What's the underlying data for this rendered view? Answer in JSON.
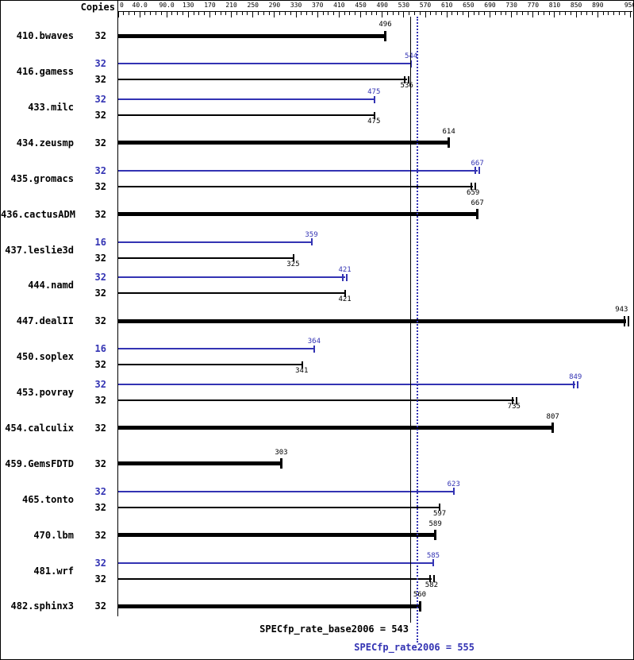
{
  "header": {
    "copies_label": "Copies"
  },
  "chart_data": {
    "type": "bar",
    "orientation": "horizontal",
    "title": "",
    "xlabel": "",
    "ylabel": "Copies",
    "xlim": [
      0,
      953
    ],
    "grid": false,
    "legend": "none",
    "colors": {
      "peak": "#3333b3",
      "base": "#000000"
    },
    "axis": {
      "minor_tick_step": 10,
      "tick_max": 950,
      "tick_labels": [
        {
          "v": 0,
          "t": "0"
        },
        {
          "v": 40,
          "t": "40.0"
        },
        {
          "v": 90,
          "t": "90.0"
        },
        {
          "v": 130,
          "t": "130"
        },
        {
          "v": 170,
          "t": "170"
        },
        {
          "v": 210,
          "t": "210"
        },
        {
          "v": 250,
          "t": "250"
        },
        {
          "v": 290,
          "t": "290"
        },
        {
          "v": 330,
          "t": "330"
        },
        {
          "v": 370,
          "t": "370"
        },
        {
          "v": 410,
          "t": "410"
        },
        {
          "v": 450,
          "t": "450"
        },
        {
          "v": 490,
          "t": "490"
        },
        {
          "v": 530,
          "t": "530"
        },
        {
          "v": 570,
          "t": "570"
        },
        {
          "v": 610,
          "t": "610"
        },
        {
          "v": 650,
          "t": "650"
        },
        {
          "v": 690,
          "t": "690"
        },
        {
          "v": 730,
          "t": "730"
        },
        {
          "v": 770,
          "t": "770"
        },
        {
          "v": 810,
          "t": "810"
        },
        {
          "v": 850,
          "t": "850"
        },
        {
          "v": 890,
          "t": "890"
        },
        {
          "v": 950,
          "t": "950"
        }
      ]
    },
    "rows": [
      {
        "name": "410.bwaves",
        "bars": [
          {
            "kind": "single",
            "copies": "32",
            "value": 496,
            "marker": "tick"
          }
        ]
      },
      {
        "name": "416.gamess",
        "bars": [
          {
            "kind": "peak",
            "copies": "32",
            "value": 544,
            "marker": "tick"
          },
          {
            "kind": "base",
            "copies": "32",
            "value": 536,
            "marker": "range"
          }
        ]
      },
      {
        "name": "433.milc",
        "bars": [
          {
            "kind": "peak",
            "copies": "32",
            "value": 475,
            "marker": "tick"
          },
          {
            "kind": "base",
            "copies": "32",
            "value": 475,
            "marker": "tick"
          }
        ]
      },
      {
        "name": "434.zeusmp",
        "bars": [
          {
            "kind": "single",
            "copies": "32",
            "value": 614,
            "marker": "tick"
          }
        ]
      },
      {
        "name": "435.gromacs",
        "bars": [
          {
            "kind": "peak",
            "copies": "32",
            "value": 667,
            "marker": "range"
          },
          {
            "kind": "base",
            "copies": "32",
            "value": 659,
            "marker": "range"
          }
        ]
      },
      {
        "name": "436.cactusADM",
        "bars": [
          {
            "kind": "single",
            "copies": "32",
            "value": 667,
            "marker": "tick"
          }
        ]
      },
      {
        "name": "437.leslie3d",
        "bars": [
          {
            "kind": "peak",
            "copies": "16",
            "value": 359,
            "marker": "tick"
          },
          {
            "kind": "base",
            "copies": "32",
            "value": 325,
            "marker": "tick"
          }
        ]
      },
      {
        "name": "444.namd",
        "bars": [
          {
            "kind": "peak",
            "copies": "32",
            "value": 421,
            "marker": "range"
          },
          {
            "kind": "base",
            "copies": "32",
            "value": 421,
            "marker": "tick"
          }
        ]
      },
      {
        "name": "447.dealII",
        "bars": [
          {
            "kind": "single",
            "copies": "32",
            "value": 943,
            "marker": "range"
          }
        ]
      },
      {
        "name": "450.soplex",
        "bars": [
          {
            "kind": "peak",
            "copies": "16",
            "value": 364,
            "marker": "tick"
          },
          {
            "kind": "base",
            "copies": "32",
            "value": 341,
            "marker": "tick"
          }
        ]
      },
      {
        "name": "453.povray",
        "bars": [
          {
            "kind": "peak",
            "copies": "32",
            "value": 849,
            "marker": "range"
          },
          {
            "kind": "base",
            "copies": "32",
            "value": 735,
            "marker": "range"
          }
        ]
      },
      {
        "name": "454.calculix",
        "bars": [
          {
            "kind": "single",
            "copies": "32",
            "value": 807,
            "marker": "tick"
          }
        ]
      },
      {
        "name": "459.GemsFDTD",
        "bars": [
          {
            "kind": "single",
            "copies": "32",
            "value": 303,
            "marker": "tick"
          }
        ]
      },
      {
        "name": "465.tonto",
        "bars": [
          {
            "kind": "peak",
            "copies": "32",
            "value": 623,
            "marker": "tick"
          },
          {
            "kind": "base",
            "copies": "32",
            "value": 597,
            "marker": "tick"
          }
        ]
      },
      {
        "name": "470.lbm",
        "bars": [
          {
            "kind": "single",
            "copies": "32",
            "value": 589,
            "marker": "tick"
          }
        ]
      },
      {
        "name": "481.wrf",
        "bars": [
          {
            "kind": "peak",
            "copies": "32",
            "value": 585,
            "marker": "tick"
          },
          {
            "kind": "base",
            "copies": "32",
            "value": 582,
            "marker": "range"
          }
        ]
      },
      {
        "name": "482.sphinx3",
        "bars": [
          {
            "kind": "single",
            "copies": "32",
            "value": 560,
            "marker": "tick"
          }
        ]
      }
    ],
    "reference_lines": [
      {
        "name": "base",
        "value": 543,
        "style": "solid",
        "color": "#000000",
        "label": "SPECfp_rate_base2006 = 543"
      },
      {
        "name": "peak",
        "value": 555,
        "style": "dotted",
        "color": "#3333b3",
        "label": "SPECfp_rate2006 = 555"
      }
    ]
  }
}
